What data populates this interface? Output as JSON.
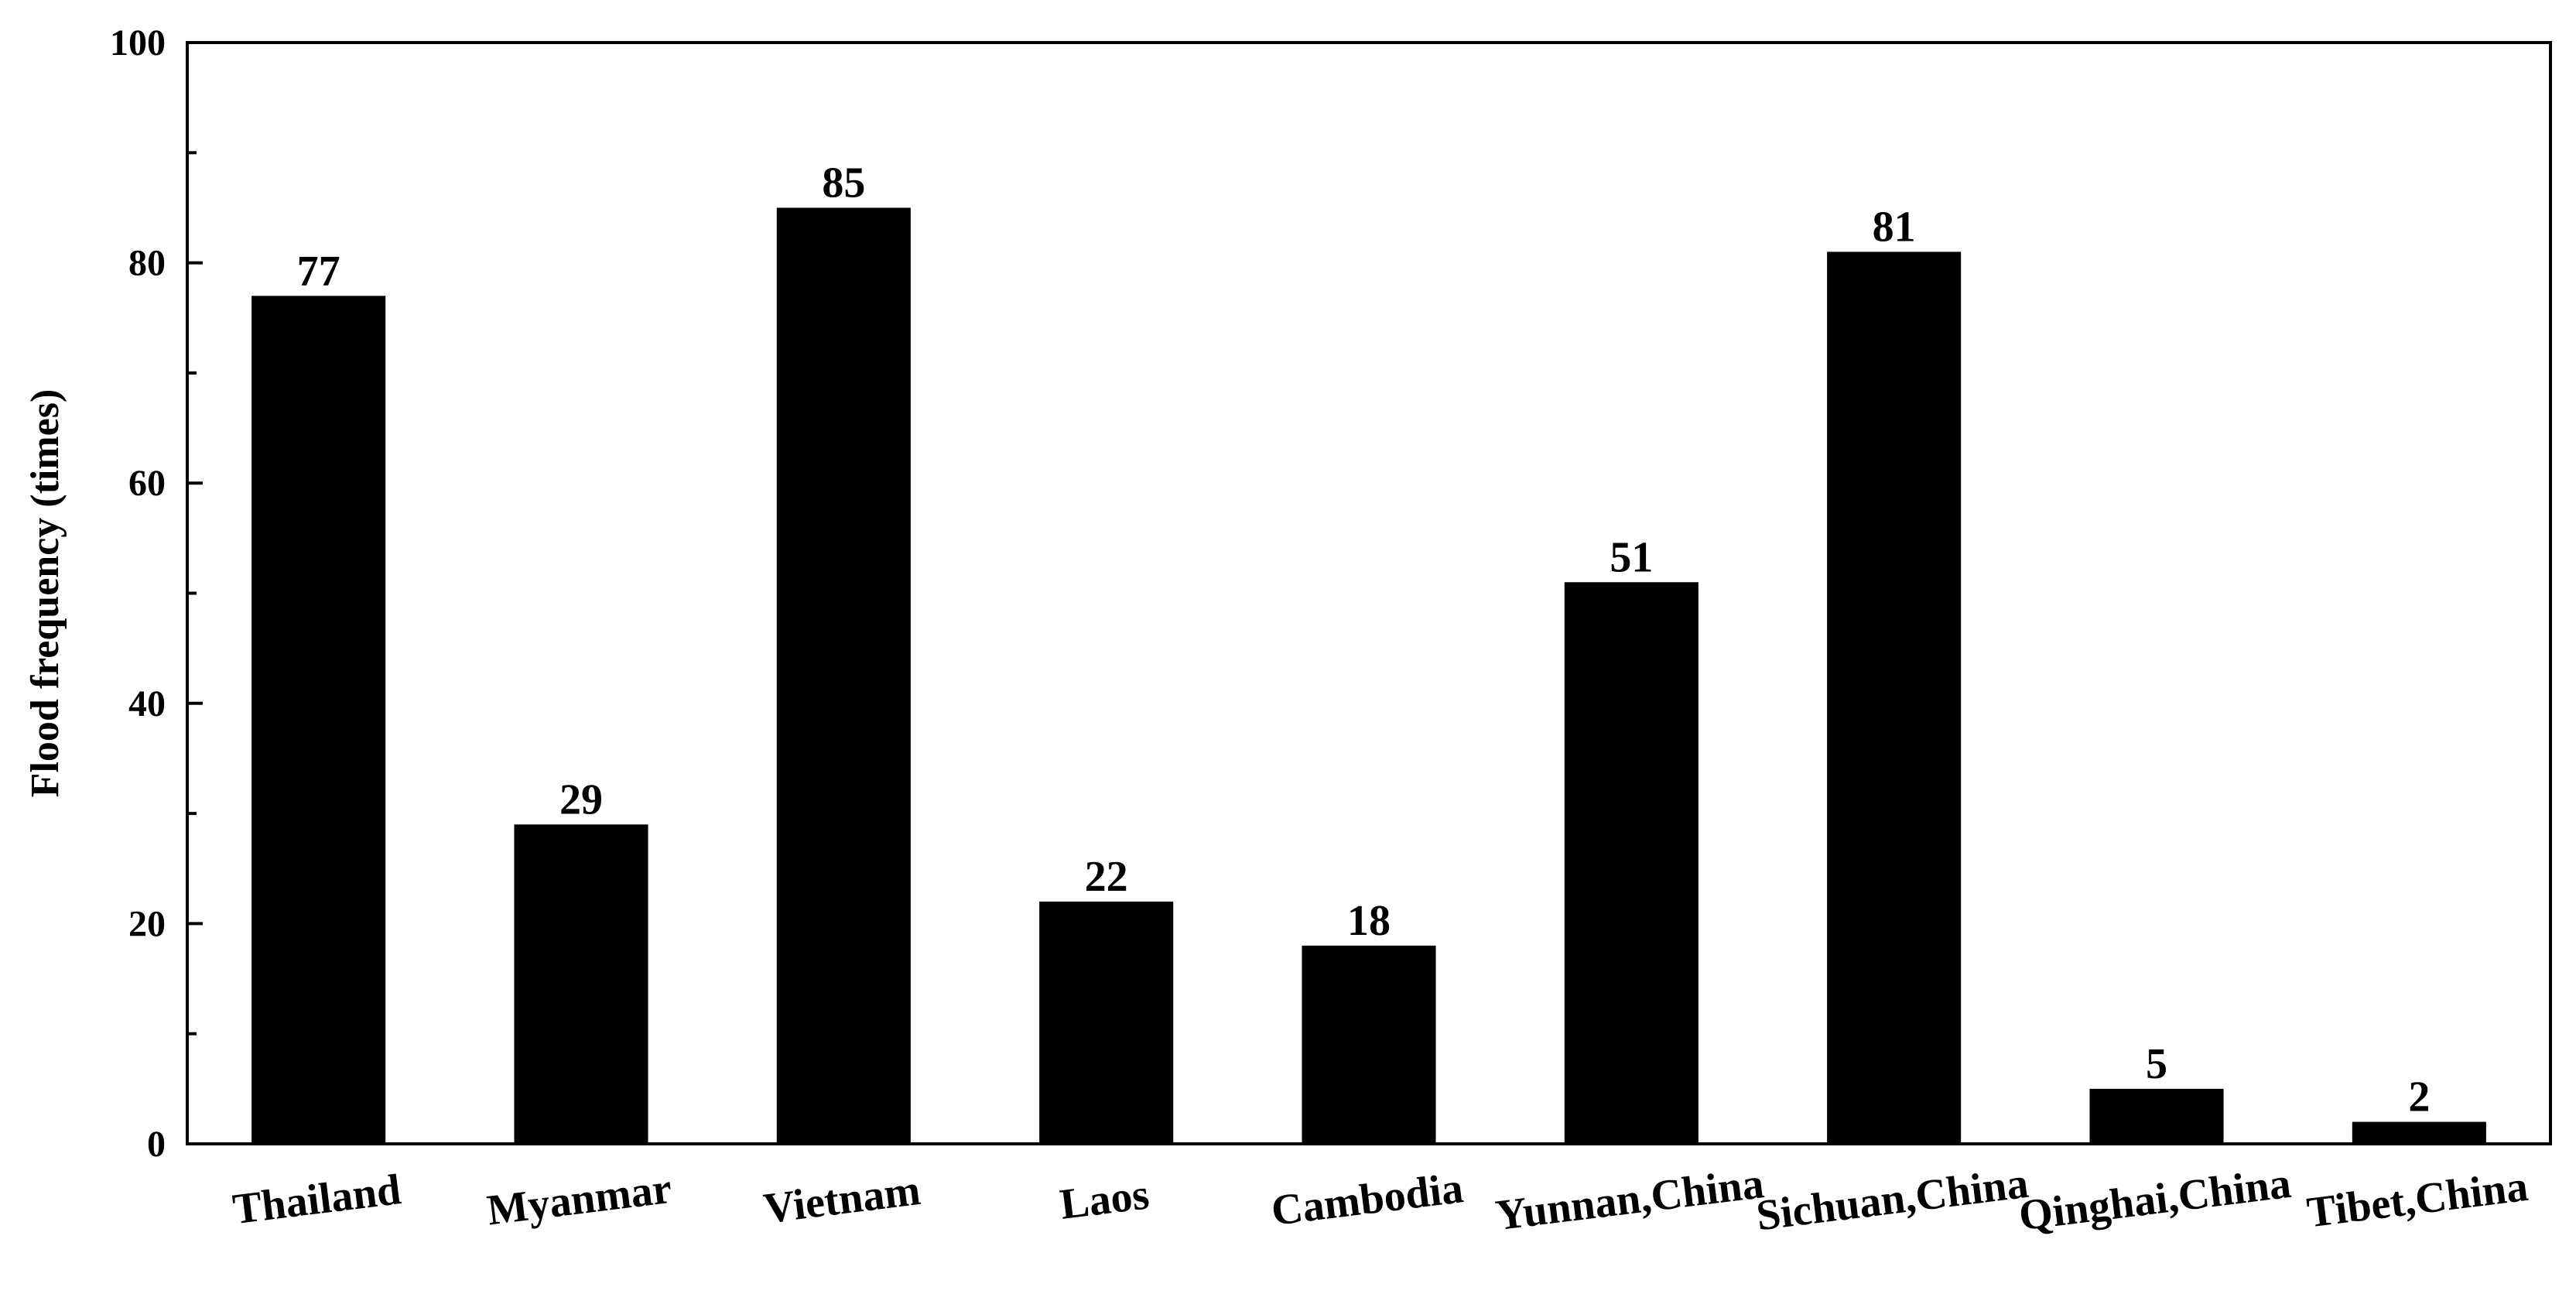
{
  "chart_data": {
    "type": "bar",
    "title": "",
    "xlabel": "",
    "ylabel": "Flood frequency (times)",
    "categories": [
      "Thailand",
      "Myanmar",
      "Vietnam",
      "Laos",
      "Cambodia",
      "Yunnan,China",
      "Sichuan,China",
      "Qinghai,China",
      "Tibet,China"
    ],
    "values": [
      77,
      29,
      85,
      22,
      18,
      51,
      81,
      5,
      2
    ],
    "ylim": [
      0,
      100
    ],
    "yticks": [
      0,
      20,
      40,
      60,
      80,
      100
    ],
    "ytick_labels": [
      "0",
      "20",
      "40",
      "60",
      "80",
      "100"
    ],
    "grid": false,
    "legend": "none",
    "bar_color": "#000000"
  }
}
